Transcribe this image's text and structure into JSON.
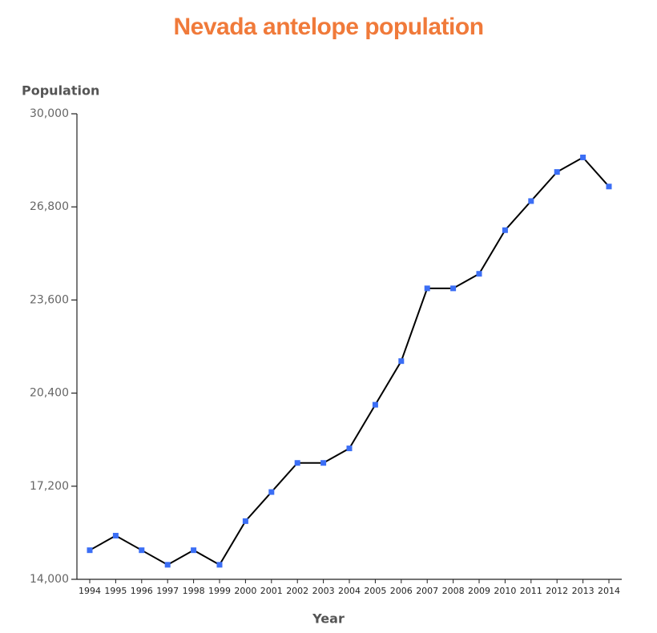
{
  "chart_data": {
    "type": "line",
    "title": "Nevada antelope population",
    "y_label": "Population",
    "x_label": "Year",
    "categories": [
      "1994",
      "1995",
      "1996",
      "1997",
      "1998",
      "1999",
      "2000",
      "2001",
      "2002",
      "2003",
      "2004",
      "2005",
      "2006",
      "2007",
      "2008",
      "2009",
      "2010",
      "2011",
      "2012",
      "2013",
      "2014"
    ],
    "values": [
      15000,
      15500,
      15000,
      14500,
      15000,
      14500,
      16000,
      17000,
      18000,
      18000,
      18500,
      20000,
      21500,
      24000,
      24000,
      24500,
      26000,
      27000,
      28000,
      28500,
      27500
    ],
    "color": "#000000",
    "marker_color": "#3b6ef5",
    "ylim": [
      14000,
      30000
    ],
    "yticks": [
      {
        "value": 14000,
        "label": "14,000"
      },
      {
        "value": 17200,
        "label": "17,200"
      },
      {
        "value": 20400,
        "label": "20,400"
      },
      {
        "value": 23600,
        "label": "23,600"
      },
      {
        "value": 26800,
        "label": "26,800"
      },
      {
        "value": 30000,
        "label": "30,000"
      }
    ]
  }
}
